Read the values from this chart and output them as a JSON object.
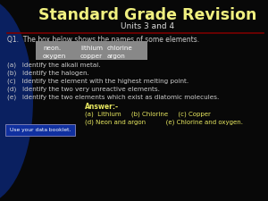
{
  "title": "Standard Grade Revision",
  "subtitle": "Units 3 and 4",
  "bg_color": "#080808",
  "title_color": "#f0f080",
  "subtitle_color": "#dddddd",
  "text_color": "#cccccc",
  "answer_color": "#e8e860",
  "blue_panel_color": "#0a2060",
  "separator_color": "#7a0000",
  "q1_text": "Q1.  The box below shows the names of some elements.",
  "box_bg": "#888888",
  "box_items_row1": [
    "neon.",
    "lithium",
    "chlorine"
  ],
  "box_items_row2": [
    "oxygen",
    "copper",
    "argon"
  ],
  "questions": [
    "(a)   Identify the alkali metal.",
    "(b)   Identify the halogen.",
    "(c)   Identify the element with the highest melting point.",
    "(d)   Identify the two very unreactive elements.",
    "(e)   Identify the two elements which exist as diatomic molecules."
  ],
  "answer_label": "Answer:-",
  "answer_line1": "(a)  Lithium     (b) Chlorine     (c) Copper",
  "answer_line2": "(d) Neon and argon          (e) Chlorine and oxygen.",
  "booklet_label": "Use your data booklet."
}
